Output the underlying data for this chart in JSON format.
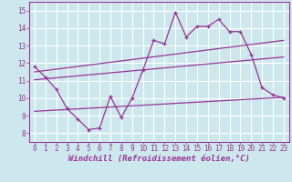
{
  "bg_color": "#cce8ec",
  "line_color": "#993399",
  "grid_color": "#ffffff",
  "xlabel": "Windchill (Refroidissement éolien,°C)",
  "ylim": [
    7.5,
    15.5
  ],
  "xlim": [
    -0.5,
    23.5
  ],
  "yticks": [
    8,
    9,
    10,
    11,
    12,
    13,
    14,
    15
  ],
  "xticks": [
    0,
    1,
    2,
    3,
    4,
    5,
    6,
    7,
    8,
    9,
    10,
    11,
    12,
    13,
    14,
    15,
    16,
    17,
    18,
    19,
    20,
    21,
    22,
    23
  ],
  "main_x": [
    0,
    1,
    2,
    3,
    4,
    5,
    6,
    7,
    8,
    9,
    10,
    11,
    12,
    13,
    14,
    15,
    16,
    17,
    18,
    19,
    20,
    21,
    22,
    23
  ],
  "main_y": [
    11.8,
    11.2,
    10.5,
    9.4,
    8.8,
    8.2,
    8.3,
    10.1,
    8.9,
    10.0,
    11.6,
    13.3,
    13.1,
    14.9,
    13.5,
    14.1,
    14.1,
    14.5,
    13.8,
    13.8,
    12.5,
    10.6,
    10.2,
    10.0
  ],
  "upper_line_x": [
    0,
    23
  ],
  "upper_line_y": [
    11.5,
    13.3
  ],
  "lower_line1_x": [
    0,
    23
  ],
  "lower_line1_y": [
    11.05,
    12.35
  ],
  "lower_line2_x": [
    0,
    23
  ],
  "lower_line2_y": [
    9.25,
    10.05
  ],
  "tick_fontsize": 5.5,
  "xlabel_fontsize": 6.5,
  "fig_width": 3.2,
  "fig_height": 2.0,
  "dpi": 100
}
